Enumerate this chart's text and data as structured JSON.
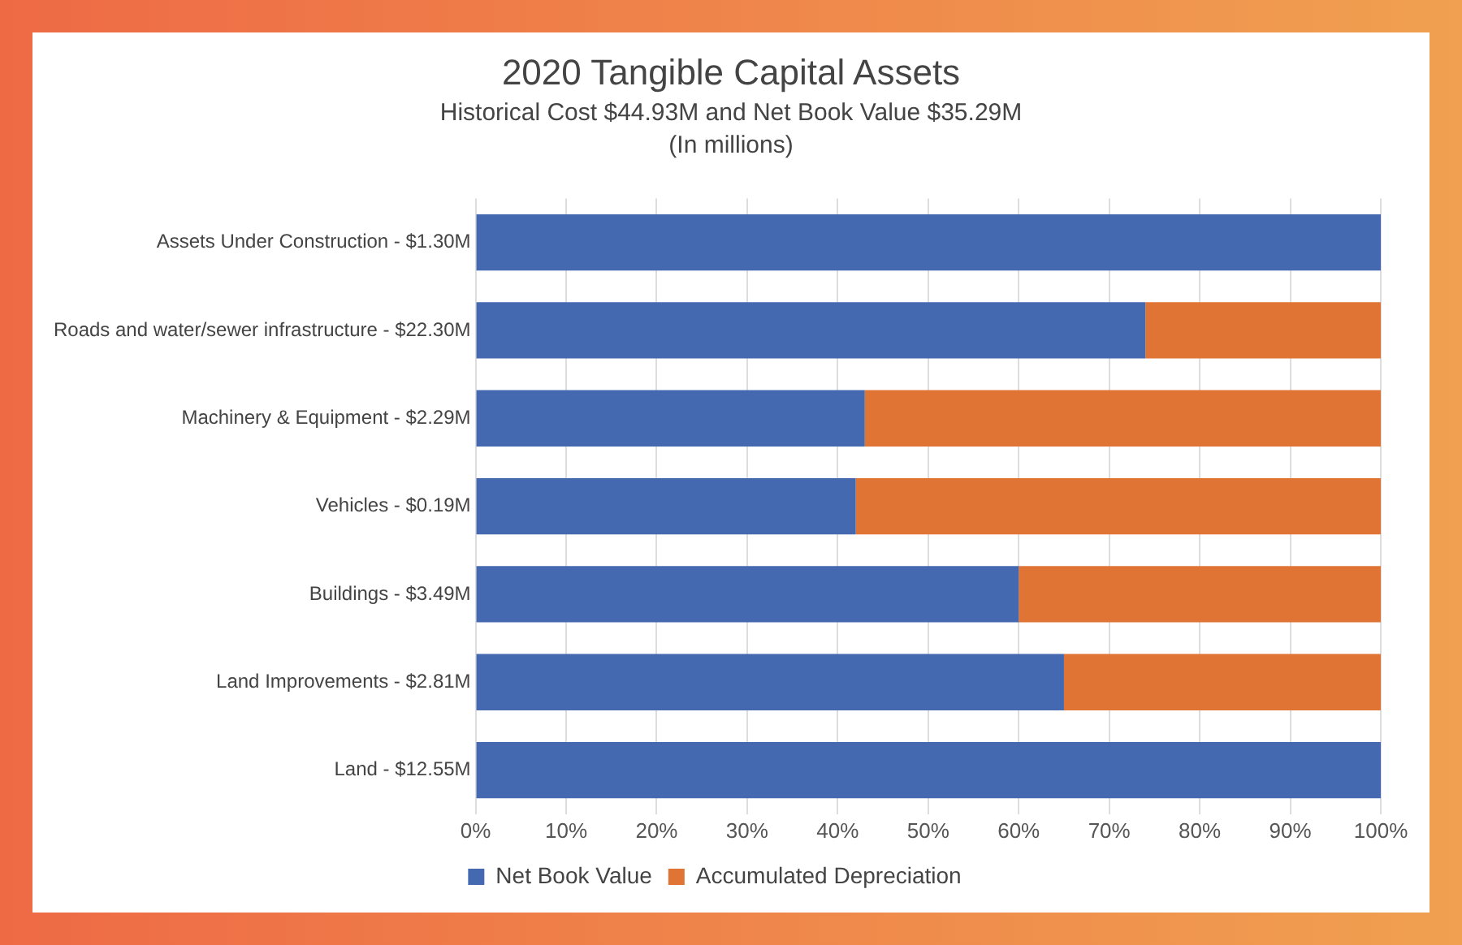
{
  "chart_data": {
    "type": "bar",
    "orientation": "horizontal",
    "stacked": true,
    "title": "2020 Tangible Capital Assets",
    "subtitle": "Historical Cost $44.93M and Net Book Value $35.29M",
    "annotations": [
      "(In millions)"
    ],
    "categories": [
      "Assets Under Construction - $1.30M",
      "Roads and water/sewer infrastructure - $22.30M",
      "Machinery & Equipment - $2.29M",
      "Vehicles - $0.19M",
      "Buildings - $3.49M",
      "Land Improvements - $2.81M",
      "Land - $12.55M"
    ],
    "series": [
      {
        "name": "Net Book Value",
        "color": "#4469b0",
        "values": [
          100,
          74,
          43,
          42,
          60,
          65,
          100
        ]
      },
      {
        "name": "Accumulated Depreciation",
        "color": "#e07434",
        "values": [
          0,
          26,
          57,
          58,
          40,
          35,
          0
        ]
      }
    ],
    "xlim": [
      0,
      100
    ],
    "xticks": [
      {
        "value": 0,
        "label": "0%"
      },
      {
        "value": 10,
        "label": "10%"
      },
      {
        "value": 20,
        "label": "20%"
      },
      {
        "value": 30,
        "label": "30%"
      },
      {
        "value": 40,
        "label": "40%"
      },
      {
        "value": 50,
        "label": "50%"
      },
      {
        "value": 60,
        "label": "60%"
      },
      {
        "value": 70,
        "label": "70%"
      },
      {
        "value": 80,
        "label": "80%"
      },
      {
        "value": 90,
        "label": "90%"
      },
      {
        "value": 100,
        "label": "100%"
      }
    ],
    "grid": "x",
    "legend": "bottom"
  }
}
